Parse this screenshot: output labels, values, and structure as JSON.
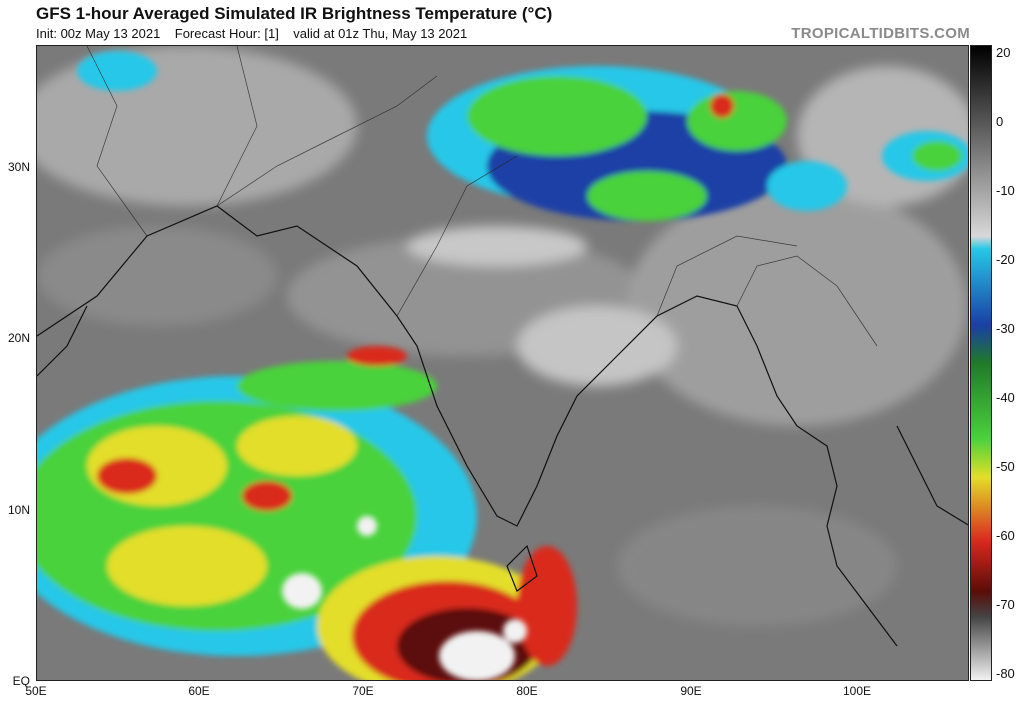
{
  "header": {
    "title": "GFS 1-hour Averaged Simulated IR Brightness Temperature (°C)",
    "init": "Init: 00z May 13 2021",
    "forecast": "Forecast Hour: [1]",
    "valid": "valid at 01z Thu, May 13 2021",
    "brand": "TROPICALTIDBITS.COM"
  },
  "axes": {
    "lat_labels": [
      "30N",
      "20N",
      "10N",
      "EQ"
    ],
    "lon_labels": [
      "50E",
      "60E",
      "70E",
      "80E",
      "90E",
      "100E"
    ]
  },
  "colorbar": {
    "ticks": [
      "20",
      "0",
      "-10",
      "-20",
      "-30",
      "-40",
      "-50",
      "-60",
      "-70",
      "-80"
    ],
    "colors": {
      "gray": "#6e6e6e",
      "cyan": "#27c7e8",
      "blue": "#1a3fa6",
      "green": "#4ad23b",
      "yellow": "#e3de2a",
      "red": "#d92a1e",
      "darkred": "#5c0c08",
      "white": "#f2f2f2"
    }
  },
  "map": {
    "region": "South Asia, Indian Ocean, Bay of Bengal"
  }
}
